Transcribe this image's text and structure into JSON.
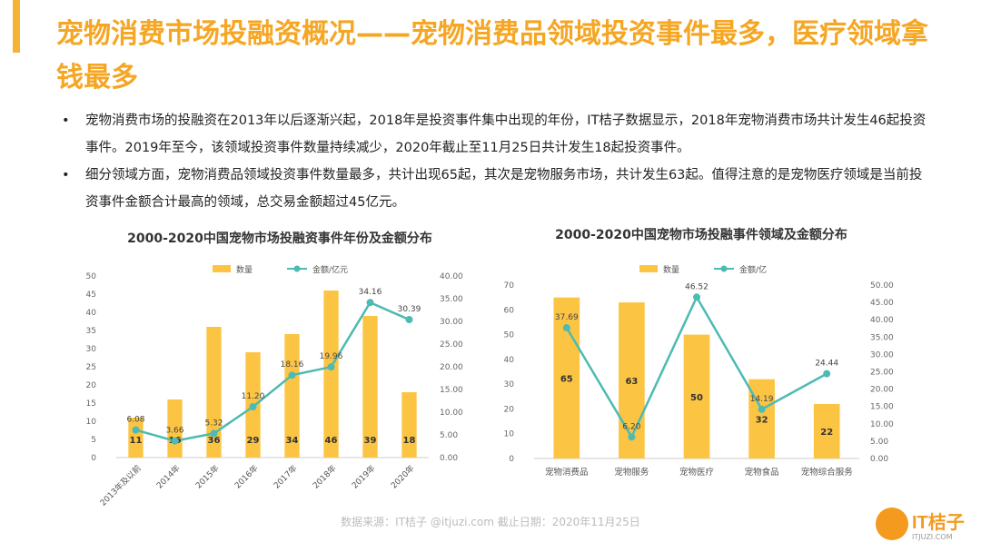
{
  "slide": {
    "title": "宠物消费市场投融资概况——宠物消费品领域投资事件最多，医疗领域拿钱最多",
    "bullets": [
      "宠物消费市场的投融资在2013年以后逐渐兴起，2018年是投资事件集中出现的年份，IT桔子数据显示，2018年宠物消费市场共计发生46起投资事件。2019年至今，该领域投资事件数量持续减少，2020年截止至11月25日共计发生18起投资事件。",
      "细分领域方面，宠物消费品领域投资事件数量最多，共计出现65起，其次是宠物服务市场，共计发生63起。值得注意的是宠物医疗领域是当前投资事件金额合计最高的领域，总交易金额超过45亿元。"
    ],
    "bullet_symbol": "•",
    "source": "数据来源：IT桔子 @itjuzi.com   截止日期：2020年11月25日",
    "logo": {
      "name": "IT桔子",
      "url": "ITJUZI.COM"
    }
  },
  "colors": {
    "accent": "#f5a623",
    "bar": "#fcc443",
    "line": "#4dbab3",
    "axis": "#cccccc"
  },
  "chart_data": [
    {
      "type": "bar",
      "title": "2000-2020中国宠物市场投融资事件年份及金额分布",
      "categories": [
        "2013年及以前",
        "2014年",
        "2015年",
        "2016年",
        "2017年",
        "2018年",
        "2019年",
        "2020年"
      ],
      "series": [
        {
          "name": "数量",
          "type": "bar",
          "axis": "left",
          "values": [
            11,
            16,
            36,
            29,
            34,
            46,
            39,
            18
          ]
        },
        {
          "name": "金额/亿元",
          "type": "line",
          "axis": "right",
          "values": [
            6.08,
            3.66,
            5.32,
            11.2,
            18.16,
            19.96,
            34.16,
            30.39
          ]
        }
      ],
      "ylim": [
        0,
        50
      ],
      "yticks": [
        0,
        5,
        10,
        15,
        20,
        25,
        30,
        35,
        40,
        45,
        50
      ],
      "y2lim": [
        0,
        40
      ],
      "y2ticks": [
        "0.00",
        "5.00",
        "10.00",
        "15.00",
        "20.00",
        "25.00",
        "30.00",
        "35.00",
        "40.00"
      ],
      "legend": "top-center",
      "grid": false
    },
    {
      "type": "bar",
      "title": "2000-2020中国宠物市场投融事件领域及金额分布",
      "categories": [
        "宠物消费品",
        "宠物服务",
        "宠物医疗",
        "宠物食品",
        "宠物综合服务"
      ],
      "series": [
        {
          "name": "数量",
          "type": "bar",
          "axis": "left",
          "values": [
            65,
            63,
            50,
            32,
            22
          ]
        },
        {
          "name": "金额/亿",
          "type": "line",
          "axis": "right",
          "values": [
            37.69,
            6.2,
            46.52,
            14.19,
            24.44
          ]
        }
      ],
      "ylim": [
        0,
        70
      ],
      "yticks": [
        0,
        10,
        20,
        30,
        40,
        50,
        60,
        70
      ],
      "y2lim": [
        0,
        50
      ],
      "y2ticks": [
        "0.00",
        "5.00",
        "10.00",
        "15.00",
        "20.00",
        "25.00",
        "30.00",
        "35.00",
        "40.00",
        "45.00",
        "50.00"
      ],
      "legend": "top-center",
      "grid": false
    }
  ]
}
